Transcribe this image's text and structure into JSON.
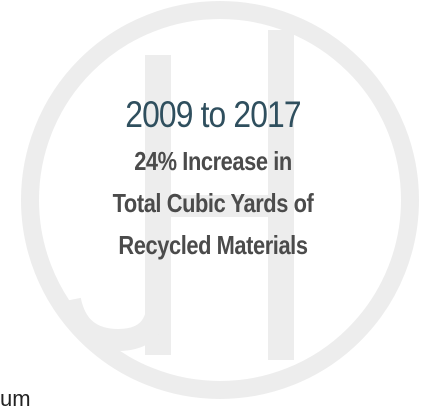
{
  "headline": "2009 to 2017",
  "subtext": {
    "line1": "24% Increase in",
    "line2": "Total Cubic Yards of",
    "line3": "Recycled Materials"
  },
  "footer_fragment": "um",
  "colors": {
    "headline": "#2f4f5e",
    "subtext": "#4b4b4b",
    "watermark": "#ededed"
  }
}
